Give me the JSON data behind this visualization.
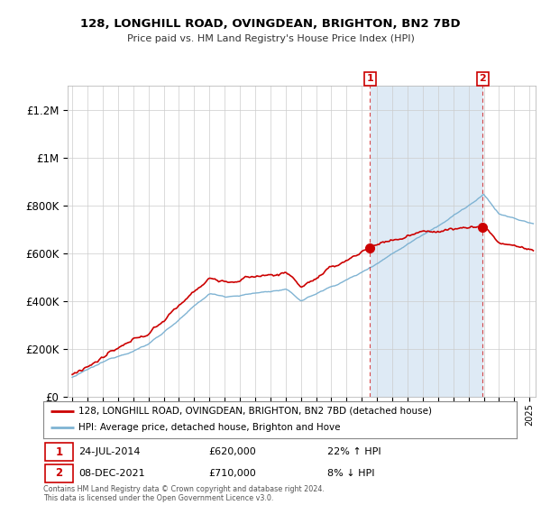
{
  "title": "128, LONGHILL ROAD, OVINGDEAN, BRIGHTON, BN2 7BD",
  "subtitle": "Price paid vs. HM Land Registry's House Price Index (HPI)",
  "ylim": [
    0,
    1300000
  ],
  "yticks": [
    0,
    200000,
    400000,
    600000,
    800000,
    1000000,
    1200000
  ],
  "ytick_labels": [
    "£0",
    "£200K",
    "£400K",
    "£600K",
    "£800K",
    "£1M",
    "£1.2M"
  ],
  "property_color": "#cc0000",
  "hpi_color": "#7fb3d3",
  "shade_color": "#deeaf5",
  "sale1_year": 2014.54,
  "sale2_year": 2021.92,
  "sale1_price": 620000,
  "sale2_price": 710000,
  "sale1_date": "24-JUL-2014",
  "sale2_date": "08-DEC-2021",
  "sale1_pct": "22%",
  "sale1_dir": "↑",
  "sale2_pct": "8%",
  "sale2_dir": "↓",
  "legend_property": "128, LONGHILL ROAD, OVINGDEAN, BRIGHTON, BN2 7BD (detached house)",
  "legend_hpi": "HPI: Average price, detached house, Brighton and Hove",
  "footnote": "Contains HM Land Registry data © Crown copyright and database right 2024.\nThis data is licensed under the Open Government Licence v3.0.",
  "plot_bg": "#ffffff",
  "grid_color": "#cccccc"
}
